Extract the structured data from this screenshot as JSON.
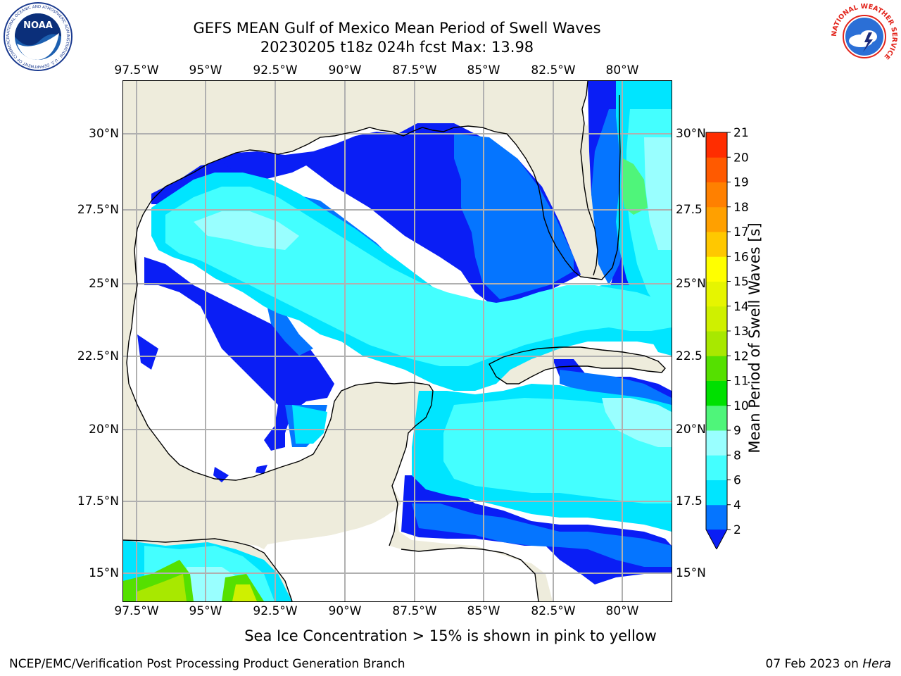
{
  "header": {
    "title": "GEFS MEAN Gulf of Mexico Mean Period of Swell Waves",
    "subtitle": "20230205 t18z 024h fcst   Max: 13.98",
    "left_logo_text": "NOAA",
    "left_logo_ring_text": "NATIONAL OCEANIC AND ATMOSPHERIC ADMINISTRATION · U.S. DEPARTMENT OF COMMERCE",
    "right_logo_ring_text": "NATIONAL WEATHER SERVICE"
  },
  "map": {
    "lon_labels": [
      "97.5°W",
      "95°W",
      "92.5°W",
      "90°W",
      "87.5°W",
      "85°W",
      "82.5°W",
      "80°W"
    ],
    "lat_labels_left": [
      "30°N",
      "27.5°N",
      "25°N",
      "22.5°N",
      "20°N",
      "17.5°N",
      "15°N"
    ],
    "lat_labels_right": [
      "30°N",
      "27.5",
      "25°N",
      "22.5",
      "20°N",
      "17.5",
      "15°N"
    ],
    "extent": {
      "lon_min": -98.0,
      "lon_max": -78.2,
      "lat_min": 14.0,
      "lat_max": 31.8
    },
    "colors": {
      "land": "#eeecdc",
      "ocean_nodata": "#ffffff",
      "grid": "#b0b0b0",
      "coast": "#000000"
    }
  },
  "colorbar": {
    "title": "Mean Period of Swell Waves [s]",
    "tick_labels": [
      "2",
      "4",
      "6",
      "8",
      "9",
      "10",
      "11",
      "12",
      "13",
      "14",
      "15",
      "16",
      "17",
      "18",
      "19",
      "20",
      "21"
    ],
    "levels": [
      {
        "from": "2",
        "to": "4",
        "color": "#0575ff"
      },
      {
        "from": "4",
        "to": "6",
        "color": "#00e5ff"
      },
      {
        "from": "6",
        "to": "8",
        "color": "#44ffff"
      },
      {
        "from": "8",
        "to": "9",
        "color": "#99ffff"
      },
      {
        "from": "9",
        "to": "10",
        "color": "#4ff57a"
      },
      {
        "from": "10",
        "to": "11",
        "color": "#00e000"
      },
      {
        "from": "11",
        "to": "12",
        "color": "#55e000"
      },
      {
        "from": "12",
        "to": "13",
        "color": "#a8e800"
      },
      {
        "from": "13",
        "to": "14",
        "color": "#cff000"
      },
      {
        "from": "14",
        "to": "15",
        "color": "#e6f500"
      },
      {
        "from": "15",
        "to": "16",
        "color": "#ffff00"
      },
      {
        "from": "16",
        "to": "17",
        "color": "#ffc800"
      },
      {
        "from": "17",
        "to": "18",
        "color": "#ffa000"
      },
      {
        "from": "18",
        "to": "19",
        "color": "#ff8000"
      },
      {
        "from": "19",
        "to": "20",
        "color": "#ff5a00"
      },
      {
        "from": "20",
        "to": "21",
        "color": "#ff2d00"
      }
    ],
    "under_color": "#0a1ef5"
  },
  "footer": {
    "note": "Sea Ice Concentration > 15% is shown in pink to yellow",
    "credit": "NCEP/EMC/Verification Post Processing Product Generation Branch",
    "date": "07 Feb 2023 on",
    "machine": "Hera"
  }
}
